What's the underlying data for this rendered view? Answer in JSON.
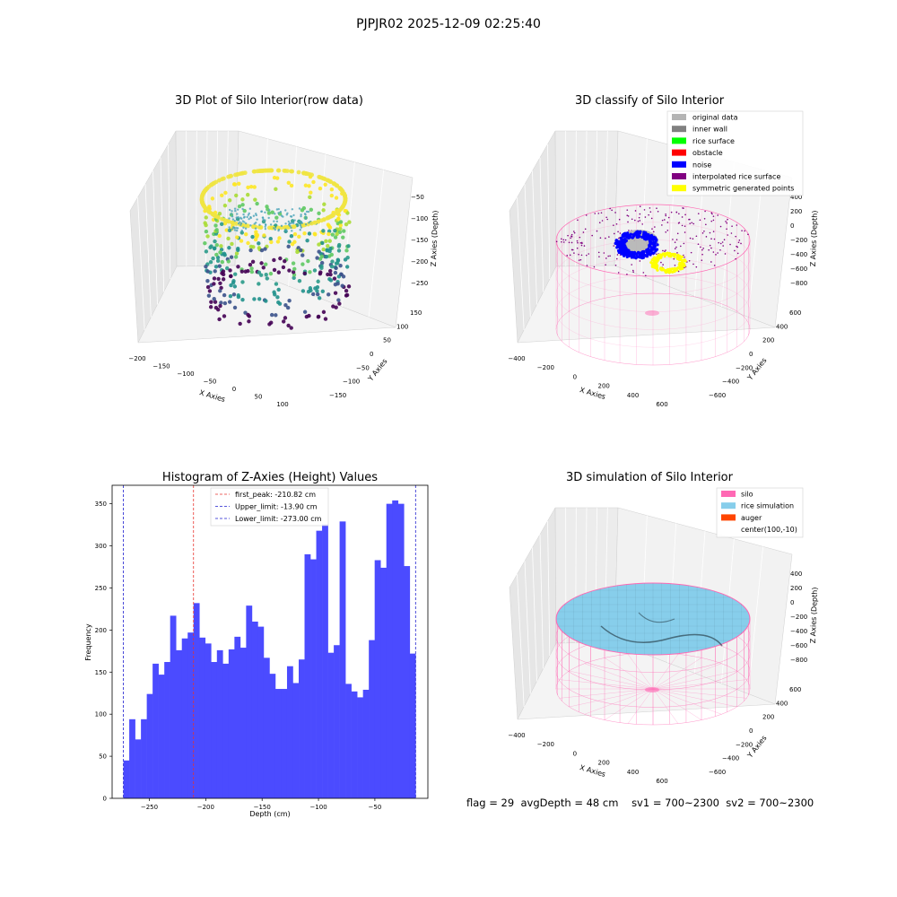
{
  "figure_title": "PJPJR02 2025-12-09 02:25:40",
  "footer": {
    "flag": "flag = 29",
    "avg_depth": "avgDepth = 48 cm",
    "sv1": "sv1 = 700~2300",
    "sv2": "sv2 = 700~2300"
  },
  "colors": {
    "histogram_bar": "#4b4bff",
    "first_peak_line": "#e8322e",
    "limit_line": "#1f1fd0",
    "silo": "#ff69b4",
    "rice_simulation": "#87ceeb",
    "auger": "#ff4500",
    "original_data": "#b4b4b4",
    "inner_wall": "#808080",
    "rice_surface": "#00ff00",
    "obstacle": "#ff0000",
    "noise": "#0000ff",
    "interpolated_rice_surface": "#800080",
    "symmetric_generated_points": "#ffff00"
  },
  "chart_data": [
    {
      "type": "scatter",
      "title": "3D Plot of Silo Interior(row data)",
      "xlabel": "X Axies",
      "ylabel": "Y Axies",
      "zlabel": "Z Axies (Depth)",
      "xticks": [
        "−200",
        "−150",
        "−100",
        "−50",
        "0",
        "50",
        "100"
      ],
      "yticks": [
        "−150",
        "−100",
        "−50",
        "0",
        "50",
        "100",
        "150"
      ],
      "zticks": [
        "−50",
        "−100",
        "−150",
        "−200",
        "−250"
      ],
      "colormap": "viridis"
    },
    {
      "type": "scatter",
      "title": "3D classify of Silo Interior",
      "xlabel": "X Axies",
      "ylabel": "Y Axies",
      "zlabel": "Z Axies (Depth)",
      "xticks": [
        "−400",
        "−200",
        "0",
        "200",
        "400",
        "600"
      ],
      "yticks": [
        "−600",
        "−400",
        "−200",
        "0",
        "200",
        "400",
        "600"
      ],
      "zticks": [
        "400",
        "200",
        "0",
        "−200",
        "−400",
        "−600",
        "−800"
      ],
      "legend": [
        "original data",
        "inner wall",
        "rice surface",
        "obstacle",
        "noise",
        "interpolated rice surface",
        "symmetric generated points"
      ],
      "legend_colors": [
        "#b4b4b4",
        "#808080",
        "#00ff00",
        "#ff0000",
        "#0000ff",
        "#800080",
        "#ffff00"
      ]
    },
    {
      "type": "bar",
      "title": "Histogram of Z-Axies (Height) Values",
      "xlabel": "Depth (cm)",
      "ylabel": "Frequency",
      "xlim": [
        -283,
        -3
      ],
      "ylim": [
        0,
        372
      ],
      "xticks": [
        -250,
        -200,
        -150,
        -100,
        -50
      ],
      "xtick_labels": [
        "−250",
        "−200",
        "−150",
        "−100",
        "−50"
      ],
      "yticks": [
        0,
        50,
        100,
        150,
        200,
        250,
        300,
        350
      ],
      "bin_start": -273.0,
      "bin_width": 5.182,
      "values": [
        45,
        94,
        70,
        94,
        124,
        160,
        147,
        162,
        217,
        176,
        190,
        197,
        232,
        191,
        184,
        162,
        176,
        160,
        177,
        192,
        179,
        229,
        210,
        204,
        167,
        148,
        130,
        130,
        157,
        137,
        165,
        290,
        284,
        318,
        326,
        173,
        182,
        329,
        136,
        127,
        120,
        129,
        188,
        283,
        274,
        350,
        354,
        350,
        276,
        172
      ],
      "vlines": [
        {
          "label": "first_peak: -210.82 cm",
          "x": -210.82,
          "color": "#e8322e"
        },
        {
          "label": "Upper_limit: -13.90 cm",
          "x": -13.9,
          "color": "#1f1fd0"
        },
        {
          "label": "Lower_limit: -273.00 cm",
          "x": -273.0,
          "color": "#1f1fd0"
        }
      ],
      "legend": "top-center"
    },
    {
      "type": "area",
      "title": "3D simulation of Silo Interior",
      "xlabel": "X Axies",
      "ylabel": "Y Axies",
      "zlabel": "Z Axies (Depth)",
      "xticks": [
        "−400",
        "−200",
        "0",
        "200",
        "400",
        "600"
      ],
      "yticks": [
        "−600",
        "−400",
        "−200",
        "0",
        "200",
        "400",
        "600"
      ],
      "zticks": [
        "400",
        "200",
        "0",
        "−200",
        "−400",
        "−600",
        "−800"
      ],
      "legend": [
        "silo",
        "rice simulation",
        "auger",
        "center(100,-10)"
      ],
      "legend_colors": [
        "#ff69b4",
        "#87ceeb",
        "#ff4500",
        ""
      ]
    }
  ]
}
